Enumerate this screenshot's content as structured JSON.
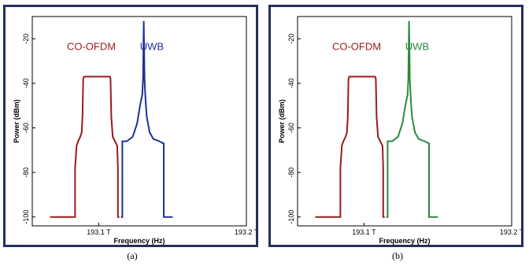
{
  "chart_data": [
    {
      "type": "line",
      "panel_label": "(a)",
      "xlabel": "Frequency (Hz)",
      "ylabel": "Power (dBm)",
      "xlim": [
        193.055,
        193.2
      ],
      "ylim": [
        -104,
        -10
      ],
      "xticks": [
        {
          "value": 193.1,
          "label": "193.1 T"
        },
        {
          "value": 193.2,
          "label": "193.2 T"
        }
      ],
      "yticks": [
        {
          "value": -20,
          "label": "-20"
        },
        {
          "value": -40,
          "label": "-40"
        },
        {
          "value": -60,
          "label": "-60"
        },
        {
          "value": -80,
          "label": "-80"
        },
        {
          "value": -100,
          "label": "-100"
        }
      ],
      "grid": false,
      "series": [
        {
          "name": "CO-OFDM",
          "color": "#9b1b1b",
          "x": [
            193.067,
            193.084,
            193.084,
            193.085,
            193.086,
            193.0875,
            193.0885,
            193.089,
            193.0895,
            193.09,
            193.1075,
            193.108,
            193.1085,
            193.1095,
            193.111,
            193.1125,
            193.113,
            193.113,
            193.114,
            193.114
          ],
          "y": [
            -100,
            -100,
            -78,
            -68,
            -66,
            -64,
            -62,
            -55,
            -38,
            -37,
            -37,
            -38,
            -55,
            -64,
            -66,
            -68,
            -78,
            -100,
            -100,
            -100
          ]
        },
        {
          "name": "UWB",
          "color": "#1f2f9a",
          "x": [
            193.115,
            193.116,
            193.116,
            193.119,
            193.123,
            193.126,
            193.128,
            193.1295,
            193.13,
            193.1305,
            193.131,
            193.1315,
            193.132,
            193.1325,
            193.1345,
            193.137,
            193.141,
            193.144,
            193.144,
            193.15
          ],
          "y": [
            -100,
            -100,
            -66,
            -66,
            -64,
            -58,
            -50,
            -45,
            -38,
            -12,
            -38,
            -45,
            -50,
            -55,
            -62,
            -65,
            -66,
            -67,
            -100,
            -100
          ]
        }
      ]
    },
    {
      "type": "line",
      "panel_label": "(b)",
      "xlabel": "Frequency (Hz)",
      "ylabel": "Power (dBm)",
      "xlim": [
        193.055,
        193.2
      ],
      "ylim": [
        -104,
        -10
      ],
      "xticks": [
        {
          "value": 193.1,
          "label": "193.1 T"
        },
        {
          "value": 193.2,
          "label": "193.2 T"
        }
      ],
      "yticks": [
        {
          "value": -20,
          "label": "-20"
        },
        {
          "value": -40,
          "label": "-40"
        },
        {
          "value": -60,
          "label": "-60"
        },
        {
          "value": -80,
          "label": "-80"
        },
        {
          "value": -100,
          "label": "-100"
        }
      ],
      "grid": false,
      "series": [
        {
          "name": "CO-OFDM",
          "color": "#9b1b1b",
          "x": [
            193.067,
            193.084,
            193.084,
            193.085,
            193.086,
            193.0875,
            193.0885,
            193.089,
            193.0895,
            193.09,
            193.1075,
            193.108,
            193.1085,
            193.1095,
            193.111,
            193.1125,
            193.113,
            193.113,
            193.114,
            193.114
          ],
          "y": [
            -100,
            -100,
            -78,
            -68,
            -66,
            -64,
            -62,
            -55,
            -38,
            -37,
            -37,
            -38,
            -55,
            -64,
            -66,
            -68,
            -78,
            -100,
            -100,
            -100
          ]
        },
        {
          "name": "UWB",
          "color": "#2a8a3a",
          "x": [
            193.115,
            193.116,
            193.116,
            193.119,
            193.123,
            193.126,
            193.128,
            193.1295,
            193.13,
            193.1305,
            193.131,
            193.1315,
            193.132,
            193.1325,
            193.1345,
            193.137,
            193.141,
            193.144,
            193.144,
            193.15
          ],
          "y": [
            -100,
            -100,
            -66,
            -66,
            -64,
            -58,
            -50,
            -45,
            -38,
            -12,
            -38,
            -45,
            -50,
            -55,
            -62,
            -65,
            -66,
            -67,
            -100,
            -100
          ]
        }
      ]
    }
  ]
}
